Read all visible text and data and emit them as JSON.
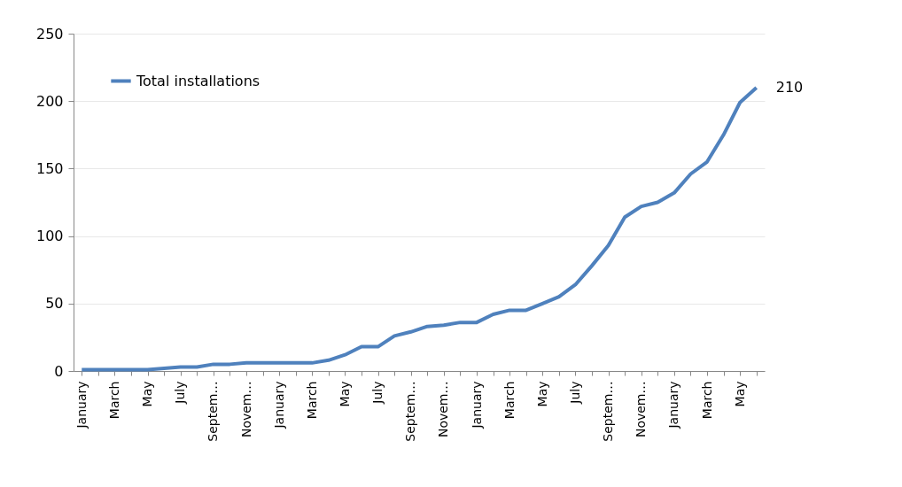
{
  "chart_data": {
    "type": "line",
    "categories": [
      "January",
      null,
      "March",
      null,
      "May",
      null,
      "July",
      null,
      "Septem…",
      null,
      "Novem…",
      null,
      "January",
      null,
      "March",
      null,
      "May",
      null,
      "July",
      null,
      "Septem…",
      null,
      "Novem…",
      null,
      "January",
      null,
      "March",
      null,
      "May",
      null,
      "July",
      null,
      "Septem…",
      null,
      "Novem…",
      null,
      "January",
      null,
      "March",
      null,
      "May",
      null
    ],
    "series": [
      {
        "name": "Total installations",
        "color": "#4f81bd",
        "values": [
          1,
          1,
          1,
          1,
          1,
          2,
          3,
          3,
          5,
          5,
          6,
          6,
          6,
          6,
          6,
          8,
          12,
          18,
          18,
          26,
          29,
          33,
          34,
          36,
          36,
          42,
          45,
          45,
          50,
          55,
          64,
          78,
          93,
          114,
          122,
          125,
          132,
          146,
          155,
          175,
          199,
          210
        ],
        "value_labels": [
          null,
          null,
          null,
          null,
          null,
          null,
          null,
          null,
          null,
          null,
          null,
          null,
          null,
          null,
          null,
          null,
          null,
          null,
          null,
          null,
          null,
          null,
          null,
          null,
          null,
          null,
          null,
          null,
          null,
          null,
          null,
          null,
          null,
          null,
          null,
          null,
          null,
          null,
          null,
          null,
          null,
          "210"
        ]
      }
    ],
    "ylim": [
      0,
      250
    ],
    "yticks": [
      0,
      50,
      100,
      150,
      200,
      250
    ],
    "grid": "y",
    "legend": "top left",
    "marker": "none",
    "line_style": "solid"
  }
}
